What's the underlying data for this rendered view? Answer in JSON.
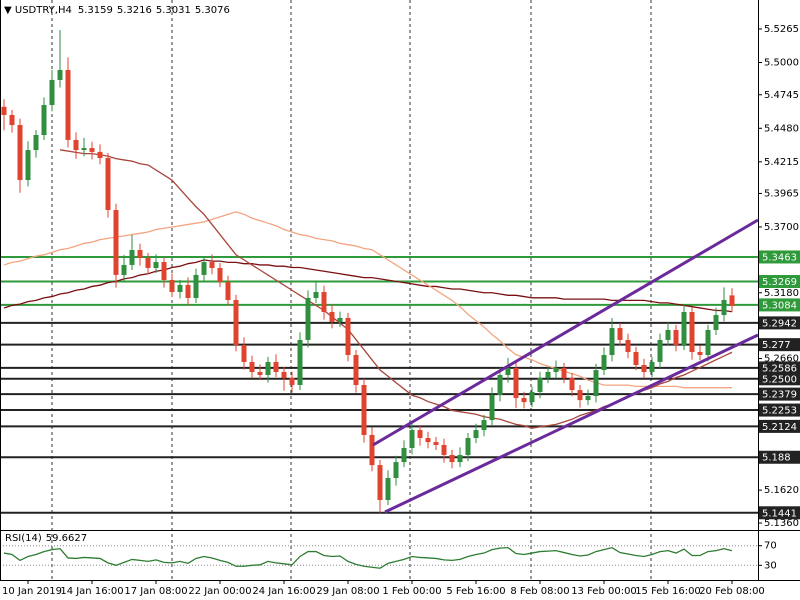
{
  "chart_data": [
    {
      "type": "candlestick",
      "title": "USDTRY,H4",
      "quote": [
        5.3159,
        5.3216,
        5.3031,
        5.3076
      ],
      "categories": [
        null,
        null,
        null,
        "10 Jan 2019",
        null,
        null,
        null,
        null,
        null,
        null,
        null,
        "14 Jan 16:00",
        null,
        null,
        null,
        null,
        null,
        null,
        null,
        "17 Jan 08:00",
        null,
        null,
        null,
        null,
        null,
        null,
        null,
        "22 Jan 00:00",
        null,
        null,
        null,
        null,
        null,
        null,
        null,
        "24 Jan 16:00",
        null,
        null,
        null,
        null,
        null,
        null,
        null,
        "29 Jan 08:00",
        null,
        null,
        null,
        null,
        null,
        null,
        null,
        "1 Feb 00:00",
        null,
        null,
        null,
        null,
        null,
        null,
        null,
        "5 Feb 16:00",
        null,
        null,
        null,
        null,
        null,
        null,
        null,
        "8 Feb 08:00",
        null,
        null,
        null,
        null,
        null,
        null,
        null,
        "13 Feb 00:00",
        null,
        null,
        null,
        null,
        null,
        null,
        null,
        "15 Feb 16:00",
        null,
        null,
        null,
        null,
        null,
        null,
        null,
        "20 Feb 08:00"
      ],
      "open": [
        5.465,
        5.4585,
        5.4506,
        5.4071,
        5.4308,
        5.4427,
        5.4664,
        5.4862,
        5.4941,
        5.4388,
        5.4308,
        5.4324,
        5.4293,
        5.4245,
        5.3834,
        5.3321,
        5.34,
        5.3518,
        5.3455,
        5.3376,
        5.3423,
        5.3281,
        5.3186,
        5.3242,
        5.3139,
        5.3321,
        5.3423,
        5.3376,
        5.3265,
        5.3123,
        5.2767,
        5.2633,
        5.2554,
        5.253,
        5.2633,
        5.2554,
        5.2506,
        5.2451,
        5.2807,
        5.3139,
        5.3186,
        5.3028,
        5.2949,
        5.2981,
        5.2688,
        5.2451,
        5.2056,
        5.1818,
        5.1542,
        5.1716,
        5.1842,
        5.1953,
        5.2095,
        5.2032,
        5.2,
        5.1977,
        5.1898,
        5.1842,
        5.1898,
        5.2032,
        5.2095,
        5.2174,
        5.2372,
        5.253,
        5.2585,
        5.2348,
        5.2316,
        5.2396,
        5.2506,
        5.2554,
        5.2585,
        5.2506,
        5.2411,
        5.2332,
        5.2364,
        5.2569,
        5.2688,
        5.2901,
        5.2807,
        5.2712,
        5.2609,
        5.2554,
        5.2633,
        5.2807,
        5.2886,
        5.2767,
        5.3028,
        5.2712,
        5.2688,
        5.2886,
        5.3004,
        5.3159
      ],
      "high": [
        5.471,
        5.4625,
        5.4556,
        5.4378,
        5.4467,
        5.4724,
        5.4942,
        5.5257,
        5.5041,
        5.4448,
        5.4404,
        5.4374,
        5.4353,
        5.4285,
        5.3884,
        5.348,
        5.3638,
        5.3568,
        5.3495,
        5.3483,
        5.3463,
        5.3331,
        5.3282,
        5.3302,
        5.3371,
        5.3463,
        5.3483,
        5.3416,
        5.3315,
        5.3163,
        5.2827,
        5.2683,
        5.2614,
        5.2673,
        5.2693,
        5.2594,
        5.2556,
        5.2867,
        5.3199,
        5.3266,
        5.3236,
        5.3088,
        5.3031,
        5.3021,
        5.2728,
        5.2501,
        5.2116,
        5.1858,
        5.1776,
        5.1892,
        5.2013,
        5.2155,
        5.2135,
        5.2082,
        5.204,
        5.2027,
        5.1938,
        5.1958,
        5.2072,
        5.2145,
        5.2214,
        5.2432,
        5.259,
        5.2665,
        5.2625,
        5.2398,
        5.2436,
        5.2556,
        5.2594,
        5.2645,
        5.2625,
        5.2546,
        5.2451,
        5.2414,
        5.2619,
        5.2748,
        5.2981,
        5.2941,
        5.2857,
        5.2752,
        5.2659,
        5.2673,
        5.2857,
        5.2946,
        5.2926,
        5.3088,
        5.3068,
        5.2762,
        5.2926,
        5.3064,
        5.3223,
        5.3216
      ],
      "low": [
        5.4465,
        5.4446,
        5.3971,
        5.4021,
        5.4248,
        5.4387,
        5.4614,
        5.4802,
        5.4328,
        5.4238,
        5.4258,
        5.4233,
        5.4195,
        5.3774,
        5.3221,
        5.3261,
        5.336,
        5.3395,
        5.3326,
        5.3336,
        5.3221,
        5.3146,
        5.3136,
        5.3079,
        5.3099,
        5.3261,
        5.3326,
        5.3225,
        5.3083,
        5.2717,
        5.2573,
        5.2504,
        5.249,
        5.247,
        5.2514,
        5.2406,
        5.2391,
        5.2411,
        5.2747,
        5.3099,
        5.2968,
        5.2899,
        5.2909,
        5.2638,
        5.2391,
        5.1996,
        5.1768,
        5.1441,
        5.1502,
        5.1656,
        5.1802,
        5.1903,
        5.1972,
        5.195,
        5.1937,
        5.1838,
        5.1792,
        5.1802,
        5.1848,
        5.1992,
        5.2045,
        5.2134,
        5.2322,
        5.247,
        5.2268,
        5.2266,
        5.2276,
        5.2346,
        5.2466,
        5.2504,
        5.2466,
        5.2361,
        5.2272,
        5.2292,
        5.2314,
        5.2529,
        5.2638,
        5.2767,
        5.2662,
        5.2569,
        5.2504,
        5.2514,
        5.2583,
        5.2767,
        5.2717,
        5.2727,
        5.2652,
        5.2648,
        5.2638,
        5.2846,
        5.2954,
        5.3031
      ],
      "close": [
        5.4585,
        5.4506,
        5.4071,
        5.4308,
        5.4427,
        5.4664,
        5.4862,
        5.4941,
        5.4388,
        5.4308,
        5.4324,
        5.4293,
        5.4245,
        5.3834,
        5.3321,
        5.34,
        5.3518,
        5.3455,
        5.3376,
        5.3423,
        5.3281,
        5.3186,
        5.3242,
        5.3139,
        5.3321,
        5.3423,
        5.3376,
        5.3265,
        5.3123,
        5.2767,
        5.2633,
        5.2554,
        5.253,
        5.2633,
        5.2554,
        5.2506,
        5.2451,
        5.2807,
        5.3139,
        5.3186,
        5.3028,
        5.2949,
        5.2981,
        5.2688,
        5.2451,
        5.2056,
        5.1818,
        5.1542,
        5.1716,
        5.1842,
        5.1953,
        5.2095,
        5.2032,
        5.2,
        5.1977,
        5.1898,
        5.1842,
        5.1898,
        5.2032,
        5.2095,
        5.2174,
        5.2372,
        5.253,
        5.2585,
        5.2348,
        5.2316,
        5.2396,
        5.2506,
        5.2554,
        5.2585,
        5.2506,
        5.2411,
        5.2332,
        5.2364,
        5.2569,
        5.2688,
        5.2901,
        5.2807,
        5.2712,
        5.2609,
        5.2554,
        5.2633,
        5.2807,
        5.2886,
        5.2767,
        5.3028,
        5.2712,
        5.2688,
        5.2886,
        5.3004,
        5.3123,
        5.3076
      ],
      "up_color": "#2f8f3f",
      "down_color": "#e2432f",
      "series": [
        {
          "color": "#7b1013",
          "values": [
            5.306,
            5.308,
            5.309,
            5.311,
            5.312,
            5.314,
            5.315,
            5.317,
            5.318,
            5.32,
            5.321,
            5.323,
            5.324,
            5.326,
            5.327,
            5.329,
            5.33,
            5.332,
            5.333,
            5.335,
            5.336,
            5.338,
            5.339,
            5.341,
            5.342,
            5.344,
            5.343,
            5.343,
            5.342,
            5.342,
            5.341,
            5.341,
            5.34,
            5.34,
            5.339,
            5.339,
            5.338,
            5.338,
            5.337,
            5.336,
            5.335,
            5.334,
            5.333,
            5.332,
            5.331,
            5.33,
            5.33,
            5.329,
            5.328,
            5.327,
            5.326,
            5.325,
            5.324,
            5.323,
            5.323,
            5.322,
            5.321,
            5.321,
            5.32,
            5.319,
            5.318,
            5.318,
            5.317,
            5.316,
            5.316,
            5.315,
            5.314,
            5.314,
            5.314,
            5.314,
            5.313,
            5.313,
            5.313,
            5.313,
            5.313,
            5.313,
            5.312,
            5.312,
            5.312,
            5.312,
            5.312,
            5.311,
            5.31,
            5.31,
            5.309,
            5.308,
            5.307,
            5.306,
            5.305,
            5.304,
            5.304,
            5.303
          ]
        },
        {
          "color": "#f4a47e",
          "values": [
            5.34,
            5.342,
            5.343,
            5.345,
            5.347,
            5.348,
            5.35,
            5.352,
            5.353,
            5.355,
            5.357,
            5.358,
            5.36,
            5.361,
            5.362,
            5.363,
            5.364,
            5.365,
            5.366,
            5.368,
            5.369,
            5.37,
            5.371,
            5.372,
            5.373,
            5.374,
            5.376,
            5.378,
            5.38,
            5.382,
            5.38,
            5.377,
            5.375,
            5.373,
            5.371,
            5.368,
            5.366,
            5.364,
            5.363,
            5.361,
            5.36,
            5.359,
            5.357,
            5.356,
            5.355,
            5.353,
            5.352,
            5.348,
            5.344,
            5.34,
            5.336,
            5.332,
            5.328,
            5.324,
            5.32,
            5.316,
            5.312,
            5.307,
            5.301,
            5.296,
            5.291,
            5.285,
            5.28,
            5.274,
            5.269,
            5.267,
            5.265,
            5.262,
            5.26,
            5.258,
            5.256,
            5.254,
            5.252,
            5.249,
            5.247,
            5.245,
            5.245,
            5.245,
            5.245,
            5.244,
            5.244,
            5.244,
            5.244,
            5.244,
            5.244,
            5.243,
            5.243,
            5.243,
            5.243,
            5.243,
            5.243,
            5.243
          ]
        },
        {
          "color": "#a9463c",
          "values": [
            null,
            null,
            null,
            null,
            null,
            null,
            null,
            5.431,
            5.43,
            5.429,
            5.428,
            5.428,
            5.427,
            5.426,
            5.424,
            5.423,
            5.422,
            5.42,
            5.419,
            5.415,
            5.411,
            5.407,
            5.4,
            5.393,
            5.386,
            5.38,
            5.372,
            5.364,
            5.356,
            5.348,
            5.344,
            5.34,
            5.336,
            5.332,
            5.328,
            5.324,
            5.32,
            5.316,
            5.312,
            5.308,
            5.304,
            5.299,
            5.294,
            5.289,
            5.281,
            5.273,
            5.265,
            5.257,
            5.252,
            5.247,
            5.242,
            5.237,
            5.235,
            5.232,
            5.23,
            5.228,
            5.225,
            5.224,
            5.223,
            5.222,
            5.22,
            5.219,
            5.218,
            5.216,
            5.214,
            5.213,
            5.211,
            5.212,
            5.213,
            5.214,
            5.216,
            5.218,
            5.221,
            5.223,
            5.225,
            5.228,
            5.23,
            5.233,
            5.236,
            5.238,
            5.241,
            5.243,
            5.246,
            5.248,
            5.251,
            5.253,
            5.256,
            5.259,
            5.262,
            5.265,
            5.268,
            5.271
          ]
        }
      ],
      "ylim": [
        5.1305,
        5.5494
      ],
      "yticks": [
        5.5265,
        {
          "value": 5.5,
          "label": "5.5000"
        },
        5.4745,
        {
          "value": 5.448,
          "label": "5.4480"
        },
        5.4215,
        5.3965,
        {
          "value": 5.37,
          "label": "5.3700"
        },
        {
          "value": 5.318,
          "label": "5.3180"
        },
        {
          "value": 5.266,
          "label": "5.2660"
        },
        {
          "value": 5.162,
          "label": "5.1620"
        },
        {
          "value": 5.136,
          "label": "5.1360"
        }
      ],
      "grid": false,
      "levels": [
        5.3463,
        5.3269,
        5.3084,
        5.2942,
        5.277,
        5.2586,
        {
          "value": 5.25,
          "label": "5.2500"
        },
        5.2379,
        5.2253,
        5.2124,
        5.188,
        5.1441
      ],
      "level_colors": [
        "#2f9a3a",
        "#2f9a3a",
        "#2f9a3a",
        "#222222",
        "#222222",
        "#222222",
        "#222222",
        "#222222",
        "#222222",
        "#222222",
        "#222222",
        "#222222"
      ]
    },
    {
      "type": "line",
      "title": "RSI(14)",
      "series": [
        {
          "color": "#2e7d32",
          "values": [
            55,
            52,
            40,
            48,
            52,
            58,
            62,
            64,
            45,
            44,
            46,
            45,
            44,
            35,
            30,
            36,
            42,
            40,
            38,
            41,
            36,
            35,
            38,
            34,
            44,
            48,
            45,
            40,
            36,
            28,
            28,
            30,
            31,
            38,
            35,
            33,
            31,
            48,
            58,
            58,
            50,
            48,
            49,
            38,
            32,
            28,
            26,
            24,
            34,
            38,
            42,
            48,
            46,
            45,
            44,
            41,
            40,
            42,
            48,
            52,
            55,
            62,
            65,
            66,
            54,
            52,
            55,
            58,
            59,
            60,
            56,
            52,
            49,
            51,
            58,
            62,
            66,
            56,
            53,
            50,
            48,
            52,
            58,
            60,
            55,
            63,
            50,
            50,
            58,
            60,
            64,
            59.6627
          ]
        }
      ],
      "ylim": [
        0,
        100
      ],
      "yticks": [
        70,
        30
      ]
    }
  ]
}
